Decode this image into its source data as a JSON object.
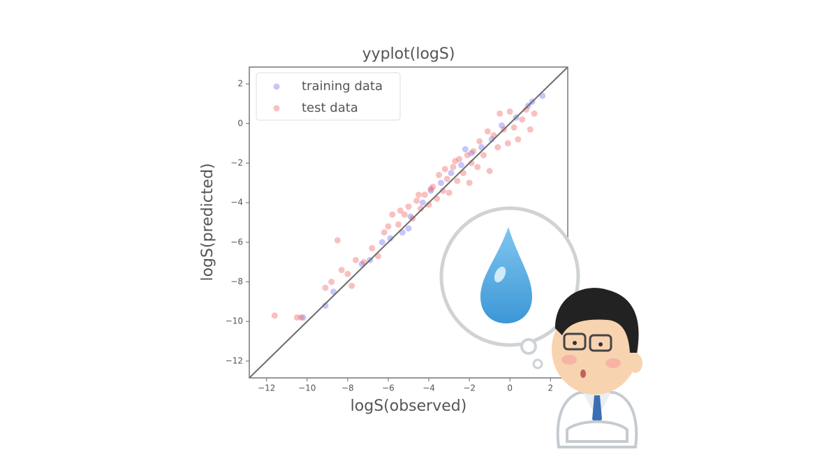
{
  "chart_data": {
    "type": "scatter",
    "title": "yyplot(logS)",
    "x_label": "logS(observed)",
    "y_label": "logS(predicted)",
    "xlim": [
      -12.85,
      2.85
    ],
    "ylim": [
      -12.85,
      2.85
    ],
    "xticks": [
      {
        "value": -12,
        "label": "−12"
      },
      {
        "value": -10,
        "label": "−10"
      },
      {
        "value": -8,
        "label": "−8"
      },
      {
        "value": -6,
        "label": "−6"
      },
      {
        "value": -4,
        "label": "−4"
      },
      {
        "value": -2,
        "label": "−2"
      },
      0,
      2
    ],
    "yticks": [
      {
        "value": -12,
        "label": "−12"
      },
      {
        "value": -10,
        "label": "−10"
      },
      {
        "value": -8,
        "label": "−8"
      },
      {
        "value": -6,
        "label": "−6"
      },
      {
        "value": -4,
        "label": "−4"
      },
      {
        "value": -2,
        "label": "−2"
      },
      0,
      2
    ],
    "legend_loc": "upper left",
    "diagonal": true,
    "series": [
      {
        "name": "training data",
        "color": "#6a6af0",
        "x": [
          -9.1,
          -8.7,
          -7.3,
          -6.9,
          -6.3,
          -5.9,
          -5.3,
          -4.9,
          -4.3,
          -3.9,
          -3.4,
          -2.9,
          -2.4,
          -1.9,
          -1.4,
          -0.9,
          -0.4,
          0.3,
          0.9,
          1.1,
          1.6,
          -10.2,
          -5.0,
          -2.2
        ],
        "values": [
          -9.2,
          -8.5,
          -7.1,
          -6.9,
          -6.0,
          -5.8,
          -5.5,
          -4.7,
          -4.0,
          -3.4,
          -3.0,
          -2.5,
          -2.1,
          -1.5,
          -1.2,
          -0.8,
          -0.1,
          0.3,
          0.9,
          1.1,
          1.4,
          -9.8,
          -5.3,
          -1.3
        ]
      },
      {
        "name": "test data",
        "color": "#f05a5a",
        "x": [
          -11.6,
          -10.5,
          -10.3,
          -9.1,
          -8.8,
          -8.5,
          -8.3,
          -8.0,
          -7.8,
          -7.6,
          -7.2,
          -6.8,
          -6.5,
          -6.2,
          -6.0,
          -5.8,
          -5.5,
          -5.2,
          -5.0,
          -4.8,
          -4.6,
          -4.4,
          -4.2,
          -4.0,
          -3.8,
          -3.6,
          -3.5,
          -3.3,
          -3.1,
          -3.0,
          -2.8,
          -2.6,
          -2.5,
          -2.3,
          -2.1,
          -2.0,
          -1.8,
          -1.6,
          -1.5,
          -1.3,
          -1.1,
          -1.0,
          -0.8,
          -0.6,
          -0.5,
          -0.3,
          -0.1,
          0.0,
          0.2,
          0.4,
          0.6,
          0.8,
          1.0,
          1.2,
          -3.9,
          -4.5,
          -2.7,
          -1.9,
          -5.4,
          -3.2
        ],
        "values": [
          -9.7,
          -9.8,
          -9.8,
          -8.3,
          -8.0,
          -5.9,
          -7.4,
          -7.6,
          -8.2,
          -6.9,
          -7.0,
          -6.3,
          -6.7,
          -5.5,
          -5.2,
          -4.6,
          -5.1,
          -4.6,
          -4.2,
          -4.8,
          -3.9,
          -4.3,
          -3.6,
          -4.1,
          -3.2,
          -3.8,
          -2.6,
          -3.4,
          -2.8,
          -3.5,
          -2.2,
          -2.9,
          -1.8,
          -2.5,
          -1.6,
          -3.0,
          -1.4,
          -2.2,
          -0.9,
          -1.6,
          -0.4,
          -2.4,
          -0.6,
          -1.2,
          0.5,
          -0.3,
          -1.0,
          0.6,
          -0.2,
          -0.8,
          0.2,
          0.7,
          -0.3,
          0.5,
          -3.3,
          -3.6,
          -1.9,
          -2.0,
          -4.4,
          -2.3
        ]
      }
    ]
  }
}
